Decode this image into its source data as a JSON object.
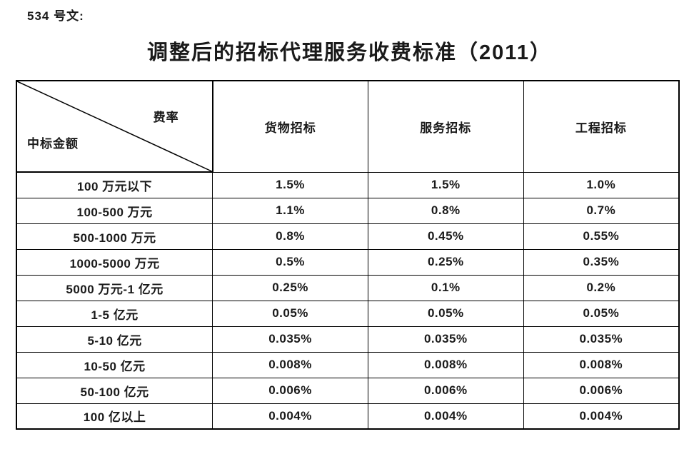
{
  "page": {
    "doc_label": "534 号文:",
    "title": "调整后的招标代理服务收费标准（2011）"
  },
  "table": {
    "corner": {
      "top_right": "费率",
      "bottom_left": "中标金额"
    },
    "columns": [
      "货物招标",
      "服务招标",
      "工程招标"
    ],
    "rows": [
      {
        "amount": "100 万元以下",
        "values": [
          "1.5%",
          "1.5%",
          "1.0%"
        ]
      },
      {
        "amount": "100-500 万元",
        "values": [
          "1.1%",
          "0.8%",
          "0.7%"
        ]
      },
      {
        "amount": "500-1000 万元",
        "values": [
          "0.8%",
          "0.45%",
          "0.55%"
        ]
      },
      {
        "amount": "1000-5000 万元",
        "values": [
          "0.5%",
          "0.25%",
          "0.35%"
        ]
      },
      {
        "amount": "5000 万元-1 亿元",
        "values": [
          "0.25%",
          "0.1%",
          "0.2%"
        ]
      },
      {
        "amount": "1-5 亿元",
        "values": [
          "0.05%",
          "0.05%",
          "0.05%"
        ]
      },
      {
        "amount": "5-10 亿元",
        "values": [
          "0.035%",
          "0.035%",
          "0.035%"
        ]
      },
      {
        "amount": "10-50 亿元",
        "values": [
          "0.008%",
          "0.008%",
          "0.008%"
        ]
      },
      {
        "amount": "50-100 亿元",
        "values": [
          "0.006%",
          "0.006%",
          "0.006%"
        ]
      },
      {
        "amount": "100 亿以上",
        "values": [
          "0.004%",
          "0.004%",
          "0.004%"
        ]
      }
    ]
  }
}
